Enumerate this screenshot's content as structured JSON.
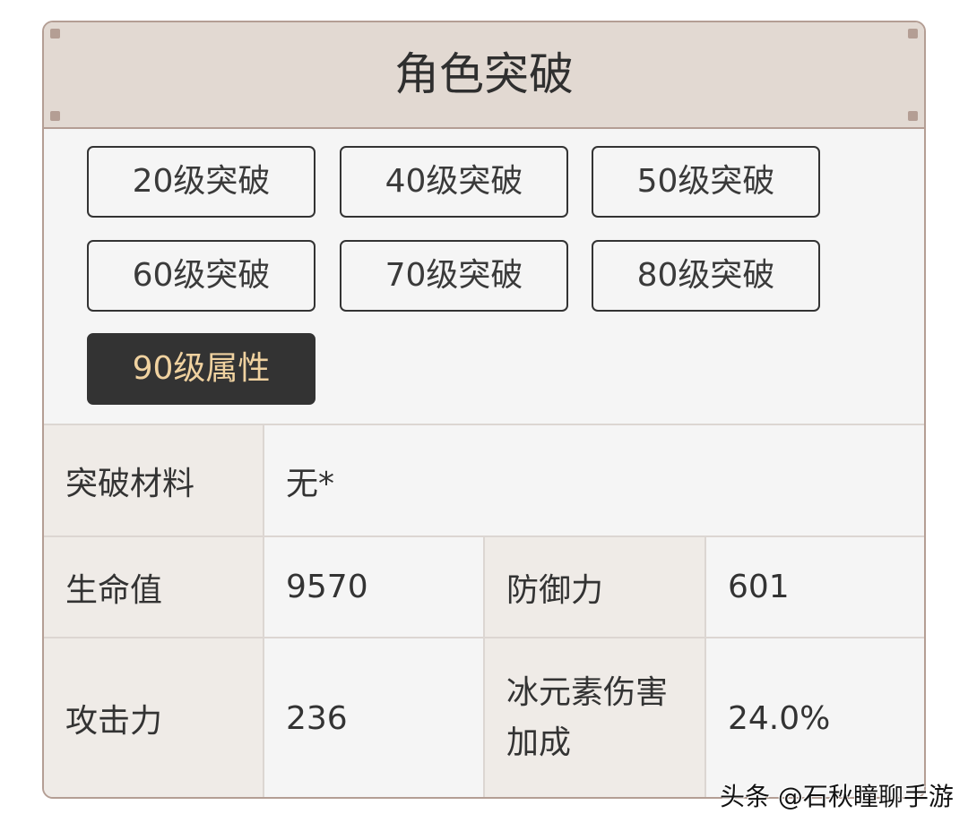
{
  "title": "角色突破",
  "buttons": [
    "20级突破",
    "40级突破",
    "50级突破",
    "60级突破",
    "70级突破",
    "80级突破",
    "90级属性"
  ],
  "active_button": "90级属性",
  "table": {
    "material_label": "突破材料",
    "material_value": "无*",
    "hp_label": "生命值",
    "hp_value": "9570",
    "def_label": "防御力",
    "def_value": "601",
    "atk_label": "攻击力",
    "atk_value": "236",
    "bonus_label": "冰元素伤害加成",
    "bonus_value": "24.0%"
  },
  "watermark": "头条 @石秋瞳聊手游",
  "colors": {
    "border": "#b49e94",
    "header_bg": "#e2d9d2",
    "active_bg": "#333333",
    "active_text": "#f0d2a0"
  }
}
